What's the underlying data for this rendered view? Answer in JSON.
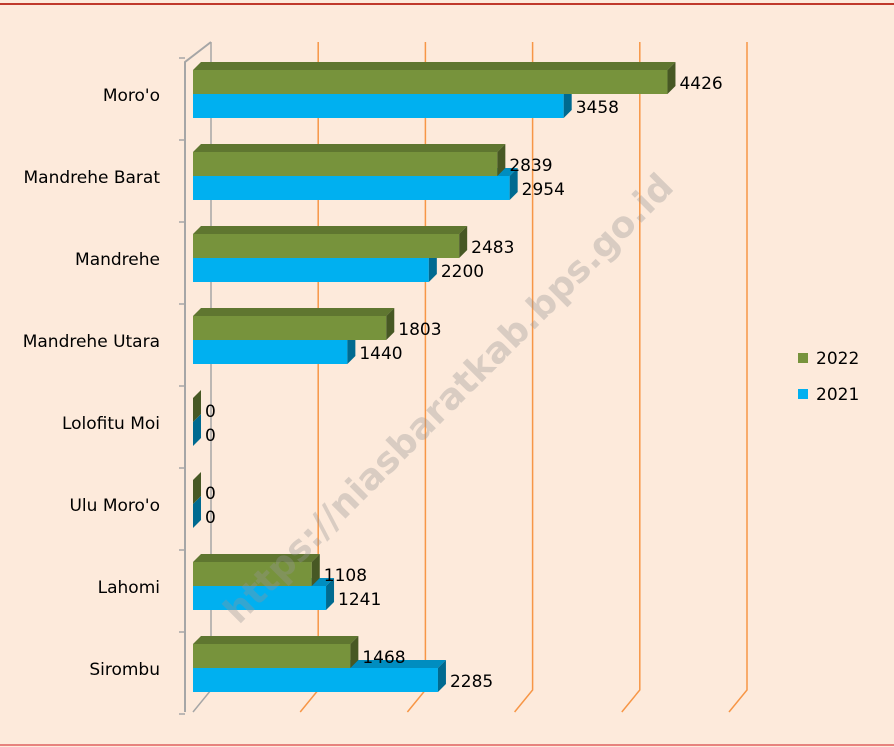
{
  "chart_data": {
    "type": "bar",
    "orientation": "horizontal",
    "categories": [
      "Moro'o",
      "Mandrehe Barat",
      "Mandrehe",
      "Mandrehe Utara",
      "Lolofitu Moi",
      "Ulu Moro'o",
      "Lahomi",
      "Sirombu"
    ],
    "series": [
      {
        "name": "2022",
        "color": "#77933c",
        "values": [
          4426,
          2839,
          2483,
          1803,
          0,
          0,
          1108,
          1468
        ]
      },
      {
        "name": "2021",
        "color": "#00b0f0",
        "values": [
          3458,
          2954,
          2200,
          1440,
          0,
          0,
          1241,
          2285
        ]
      }
    ],
    "xlim": [
      0,
      5000
    ],
    "xticks": [
      0,
      1000,
      2000,
      3000,
      4000,
      5000
    ],
    "grid": true,
    "legend": "right",
    "watermark": "https://niasbaratkab.bps.go.id"
  }
}
